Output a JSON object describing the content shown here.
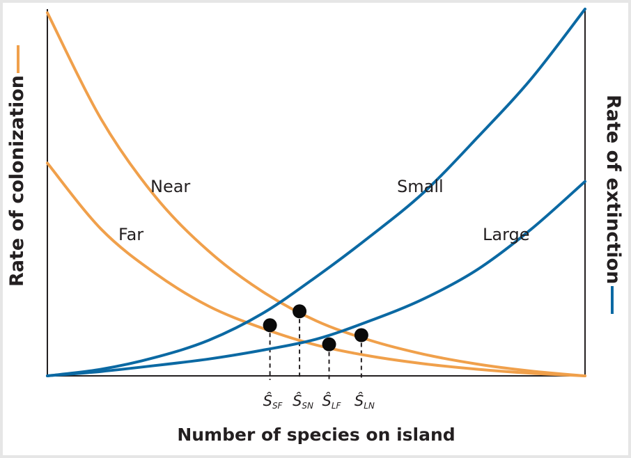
{
  "chart_data": {
    "type": "line",
    "xlabel": "Number of species on island",
    "ylabel_left": "Rate of colonization",
    "ylabel_right": "Rate of extinction",
    "xlim": [
      0,
      1
    ],
    "ylim": [
      0,
      1
    ],
    "series": [
      {
        "name": "Near",
        "kind": "colonization",
        "color": "#f0a04b",
        "x": [
          0,
          0.1,
          0.2,
          0.3,
          0.4,
          0.5,
          0.6,
          0.7,
          0.8,
          0.9,
          1.0
        ],
        "y": [
          0.99,
          0.7,
          0.49,
          0.34,
          0.23,
          0.15,
          0.097,
          0.059,
          0.032,
          0.013,
          0.0
        ]
      },
      {
        "name": "Far",
        "kind": "colonization",
        "color": "#f0a04b",
        "x": [
          0,
          0.1,
          0.2,
          0.3,
          0.4,
          0.5,
          0.6,
          0.7,
          0.8,
          0.9,
          1.0
        ],
        "y": [
          0.58,
          0.4,
          0.28,
          0.19,
          0.13,
          0.084,
          0.054,
          0.033,
          0.018,
          0.007,
          0.0
        ]
      },
      {
        "name": "Small",
        "kind": "extinction",
        "color": "#0b69a3",
        "x": [
          0,
          0.1,
          0.2,
          0.3,
          0.4,
          0.5,
          0.6,
          0.7,
          0.8,
          0.9,
          1.0
        ],
        "y": [
          0.0,
          0.018,
          0.05,
          0.097,
          0.17,
          0.27,
          0.38,
          0.5,
          0.65,
          0.81,
          1.0
        ]
      },
      {
        "name": "Large",
        "kind": "extinction",
        "color": "#0b69a3",
        "x": [
          0,
          0.1,
          0.2,
          0.3,
          0.4,
          0.5,
          0.6,
          0.7,
          0.8,
          0.9,
          1.0
        ],
        "y": [
          0.0,
          0.012,
          0.028,
          0.046,
          0.07,
          0.1,
          0.15,
          0.21,
          0.29,
          0.4,
          0.53
        ]
      }
    ],
    "equilibria": [
      {
        "label": "Ŝ",
        "sub": "SF",
        "x": 0.414,
        "y": 0.138
      },
      {
        "label": "Ŝ",
        "sub": "SN",
        "x": 0.469,
        "y": 0.176
      },
      {
        "label": "Ŝ",
        "sub": "LF",
        "x": 0.524,
        "y": 0.086
      },
      {
        "label": "Ŝ",
        "sub": "LN",
        "x": 0.584,
        "y": 0.111
      }
    ],
    "curve_labels": [
      "Near",
      "Far",
      "Small",
      "Large"
    ]
  }
}
